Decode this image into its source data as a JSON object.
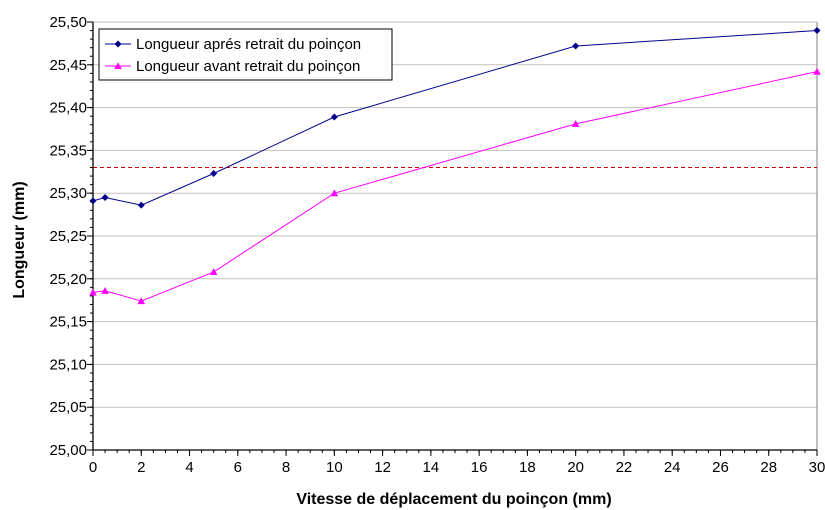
{
  "chart_data": {
    "type": "line",
    "title": "",
    "xlabel": "Vitesse de déplacement du poinçon (mm)",
    "ylabel": "Longueur (mm)",
    "xlim": [
      0,
      30
    ],
    "ylim": [
      25.0,
      25.5
    ],
    "x_ticks": [
      0,
      2,
      4,
      6,
      8,
      10,
      12,
      14,
      16,
      18,
      20,
      22,
      24,
      26,
      28,
      30
    ],
    "y_ticks": [
      25.0,
      25.05,
      25.1,
      25.15,
      25.2,
      25.25,
      25.3,
      25.35,
      25.4,
      25.45,
      25.5
    ],
    "x_tick_labels": [
      "0",
      "2",
      "4",
      "6",
      "8",
      "10",
      "12",
      "14",
      "16",
      "18",
      "20",
      "22",
      "24",
      "26",
      "28",
      "30"
    ],
    "y_tick_labels": [
      "25,00",
      "25,05",
      "25,10",
      "25,15",
      "25,20",
      "25,25",
      "25,30",
      "25,35",
      "25,40",
      "25,45",
      "25,50"
    ],
    "grid": "horizontal",
    "legend_position": "top-left",
    "series": [
      {
        "name": "Longueur aprés retrait du poinçon",
        "color": "#00008b",
        "marker": "diamond",
        "x": [
          0,
          0.5,
          2,
          5,
          10,
          20,
          30
        ],
        "y": [
          25.291,
          25.295,
          25.286,
          25.323,
          25.389,
          25.472,
          25.49
        ]
      },
      {
        "name": "Longueur avant retrait du poinçon",
        "color": "#ff00ff",
        "marker": "triangle",
        "x": [
          0,
          0.5,
          2,
          5,
          10,
          20,
          30
        ],
        "y": [
          25.184,
          25.186,
          25.174,
          25.208,
          25.3,
          25.381,
          25.442
        ]
      }
    ],
    "reference_line": {
      "y": 25.33,
      "color": "#cc0000",
      "style": "dashed"
    }
  }
}
